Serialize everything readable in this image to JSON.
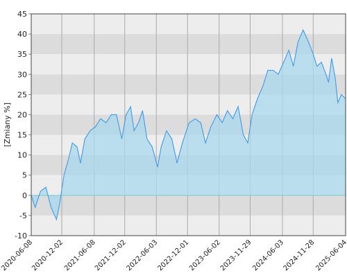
{
  "chart_data": {
    "type": "area",
    "y_label": "[Zmiany %]",
    "x": [
      "2020-06-08",
      "2020-07-01",
      "2020-08-01",
      "2020-09-01",
      "2020-10-01",
      "2020-11-01",
      "2020-11-20",
      "2020-12-15",
      "2021-01-10",
      "2021-02-01",
      "2021-03-01",
      "2021-03-20",
      "2021-04-15",
      "2021-05-15",
      "2021-06-15",
      "2021-07-15",
      "2021-08-15",
      "2021-09-15",
      "2021-10-15",
      "2021-11-15",
      "2021-12-10",
      "2022-01-05",
      "2022-01-25",
      "2022-02-20",
      "2022-03-15",
      "2022-04-10",
      "2022-05-10",
      "2022-06-10",
      "2022-07-01",
      "2022-08-01",
      "2022-09-01",
      "2022-10-01",
      "2022-11-01",
      "2022-12-10",
      "2023-01-15",
      "2023-02-15",
      "2023-03-15",
      "2023-04-15",
      "2023-05-20",
      "2023-06-20",
      "2023-07-20",
      "2023-08-20",
      "2023-09-20",
      "2023-10-20",
      "2023-11-15",
      "2023-12-10",
      "2024-01-10",
      "2024-02-10",
      "2024-03-10",
      "2024-04-10",
      "2024-05-10",
      "2024-06-10",
      "2024-07-10",
      "2024-08-05",
      "2024-09-01",
      "2024-10-01",
      "2024-11-01",
      "2024-11-28",
      "2024-12-20",
      "2025-01-15",
      "2025-02-10",
      "2025-02-25",
      "2025-03-15",
      "2025-04-05",
      "2025-04-20",
      "2025-05-10",
      "2025-06-04"
    ],
    "series": [
      {
        "color": "#4a9fe8",
        "fill": "#a8d8ec",
        "values": [
          0,
          -3,
          1,
          2,
          -3,
          -6,
          -2,
          5,
          9,
          13,
          12,
          8,
          14,
          16,
          17,
          19,
          18,
          20,
          20,
          14,
          20,
          22,
          16,
          18,
          21,
          14,
          12,
          7,
          12,
          16,
          14,
          8,
          13,
          18,
          19,
          18,
          13,
          17,
          20,
          18,
          21,
          19,
          22,
          15,
          13,
          20,
          24,
          27,
          31,
          31,
          30,
          33,
          36,
          32,
          38,
          41,
          38,
          35,
          32,
          33,
          30,
          28,
          34,
          29,
          23,
          25,
          24
        ]
      }
    ],
    "xlim": [
      "2020-06-08",
      "2025-06-04"
    ],
    "xticks": [
      "2020-06-08",
      "2020-12-02",
      "2021-06-08",
      "2021-12-02",
      "2022-06-03",
      "2022-12-01",
      "2023-06-02",
      "2023-11-29",
      "2024-06-03",
      "2024-11-28",
      "2025-06-04"
    ],
    "ylim": [
      -10,
      45
    ],
    "yticks": [
      -10,
      -5,
      0,
      5,
      10,
      15,
      20,
      25,
      30,
      35,
      40,
      45
    ],
    "grid": true
  }
}
